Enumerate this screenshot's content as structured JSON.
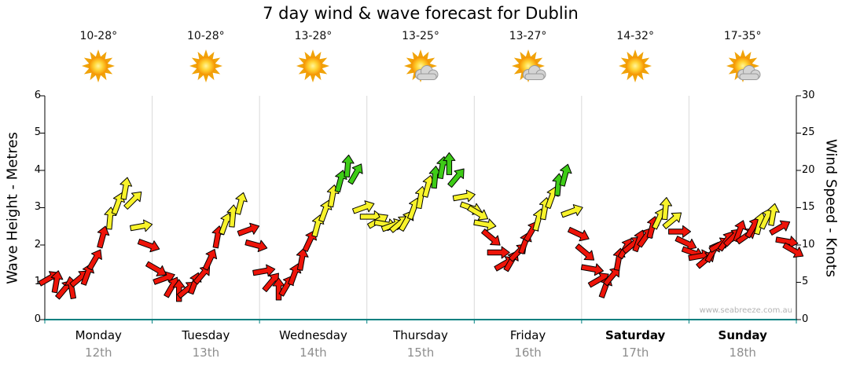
{
  "title": "7 day wind & wave forecast for Dublin",
  "watermark": "www.seabreeze.com.au",
  "axes": {
    "left_title": "Wave Height - Metres",
    "right_title": "Wind Speed - Knots",
    "left_ticks": [
      "0",
      "1",
      "2",
      "3",
      "4",
      "5",
      "6"
    ],
    "right_ticks": [
      "0",
      "5",
      "10",
      "15",
      "20",
      "25",
      "30"
    ]
  },
  "days": [
    {
      "name": "Monday",
      "date": "12th",
      "temp": "10-28°",
      "icon": "sunny"
    },
    {
      "name": "Tuesday",
      "date": "13th",
      "temp": "10-28°",
      "icon": "sunny"
    },
    {
      "name": "Wednesday",
      "date": "14th",
      "temp": "13-28°",
      "icon": "sunny"
    },
    {
      "name": "Thursday",
      "date": "15th",
      "temp": "13-25°",
      "icon": "partly-cloudy"
    },
    {
      "name": "Friday",
      "date": "16th",
      "temp": "13-27°",
      "icon": "partly-cloudy"
    },
    {
      "name": "Saturday",
      "date": "17th",
      "temp": "14-32°",
      "icon": "sunny"
    },
    {
      "name": "Sunday",
      "date": "18th",
      "temp": "17-35°",
      "icon": "partly-cloudy"
    }
  ],
  "chart_data": {
    "type": "wind-arrows",
    "title": "7 day wind & wave forecast for Dublin",
    "x_axis": "7 days, Monday 12th to Sunday 18th",
    "y_left": {
      "label": "Wave Height - Metres",
      "range": [
        0,
        6
      ]
    },
    "y_right": {
      "label": "Wind Speed - Knots",
      "range": [
        0,
        30
      ]
    },
    "grid": "vertical day separators only",
    "colors": {
      "red": "#ee1409",
      "yellow": "#f8f32b",
      "green": "#3ecc17",
      "outline": "#000000",
      "baseline": "#008080",
      "separator": "#d9d9d9"
    },
    "color_rule": {
      "red_below_knots": 12.5,
      "yellow_below_knots": 18,
      "green_at_or_above_knots": 18
    },
    "dir_convention": "degrees counterclockwise from east; 0 = arrow points right",
    "point_format": "[wind_speed_knots, direction_deg]",
    "series": [
      {
        "day": "Monday",
        "points": [
          [
            5.5,
            30
          ],
          [
            5.0,
            80
          ],
          [
            4.0,
            50
          ],
          [
            4.2,
            100
          ],
          [
            5.5,
            40
          ],
          [
            6.0,
            70
          ],
          [
            8.0,
            60
          ],
          [
            11.0,
            75
          ],
          [
            13.5,
            85
          ],
          [
            15.5,
            70
          ],
          [
            17.5,
            80
          ],
          [
            16.0,
            45
          ],
          [
            12.5,
            10
          ],
          [
            10.0,
            -20
          ]
        ]
      },
      {
        "day": "Tuesday",
        "points": [
          [
            6.8,
            -30
          ],
          [
            5.5,
            20
          ],
          [
            4.3,
            60
          ],
          [
            3.8,
            90
          ],
          [
            4.0,
            40
          ],
          [
            4.8,
            70
          ],
          [
            6.0,
            50
          ],
          [
            8.0,
            65
          ],
          [
            11.0,
            80
          ],
          [
            12.8,
            70
          ],
          [
            13.8,
            85
          ],
          [
            15.5,
            75
          ],
          [
            12.0,
            20
          ],
          [
            10.0,
            -15
          ]
        ]
      },
      {
        "day": "Wednesday",
        "points": [
          [
            6.5,
            10
          ],
          [
            5.0,
            50
          ],
          [
            4.0,
            90
          ],
          [
            4.5,
            60
          ],
          [
            6.0,
            70
          ],
          [
            8.0,
            80
          ],
          [
            10.5,
            65
          ],
          [
            12.5,
            75
          ],
          [
            14.5,
            70
          ],
          [
            16.5,
            80
          ],
          [
            18.5,
            75
          ],
          [
            20.5,
            85
          ],
          [
            19.5,
            60
          ],
          [
            15.0,
            20
          ]
        ]
      },
      {
        "day": "Thursday",
        "points": [
          [
            13.8,
            0
          ],
          [
            13.2,
            30
          ],
          [
            12.8,
            -10
          ],
          [
            12.6,
            20
          ],
          [
            12.8,
            40
          ],
          [
            13.2,
            60
          ],
          [
            14.8,
            70
          ],
          [
            16.3,
            80
          ],
          [
            17.8,
            75
          ],
          [
            19.0,
            85
          ],
          [
            20.3,
            80
          ],
          [
            20.8,
            90
          ],
          [
            19.0,
            50
          ],
          [
            16.5,
            10
          ],
          [
            15.0,
            -20
          ]
        ]
      },
      {
        "day": "Friday",
        "points": [
          [
            14.3,
            -30
          ],
          [
            12.8,
            -10
          ],
          [
            11.0,
            -40
          ],
          [
            9.0,
            0
          ],
          [
            7.5,
            30
          ],
          [
            7.8,
            60
          ],
          [
            9.0,
            45
          ],
          [
            10.2,
            70
          ],
          [
            11.8,
            60
          ],
          [
            13.3,
            75
          ],
          [
            14.8,
            80
          ],
          [
            16.3,
            70
          ],
          [
            18.0,
            85
          ],
          [
            19.3,
            75
          ],
          [
            14.5,
            20
          ],
          [
            11.5,
            -25
          ]
        ]
      },
      {
        "day": "Saturday",
        "points": [
          [
            9.0,
            -40
          ],
          [
            6.8,
            -10
          ],
          [
            5.3,
            30
          ],
          [
            4.3,
            70
          ],
          [
            5.8,
            50
          ],
          [
            8.0,
            80
          ],
          [
            9.5,
            60
          ],
          [
            10.0,
            40
          ],
          [
            10.5,
            70
          ],
          [
            11.0,
            55
          ],
          [
            12.3,
            75
          ],
          [
            13.5,
            65
          ],
          [
            14.8,
            85
          ],
          [
            13.3,
            40
          ],
          [
            11.8,
            0
          ],
          [
            10.3,
            -25
          ]
        ]
      },
      {
        "day": "Sunday",
        "points": [
          [
            9.0,
            -20
          ],
          [
            8.5,
            10
          ],
          [
            8.0,
            40
          ],
          [
            9.0,
            60
          ],
          [
            10.0,
            30
          ],
          [
            10.5,
            55
          ],
          [
            11.0,
            45
          ],
          [
            11.8,
            70
          ],
          [
            11.2,
            35
          ],
          [
            12.3,
            60
          ],
          [
            12.8,
            75
          ],
          [
            13.5,
            65
          ],
          [
            14.0,
            80
          ],
          [
            12.3,
            30
          ],
          [
            10.5,
            -10
          ],
          [
            9.3,
            -30
          ]
        ]
      }
    ]
  }
}
